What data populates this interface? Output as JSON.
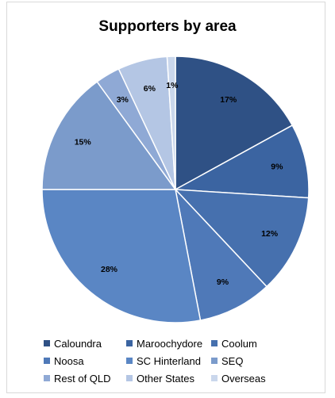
{
  "chart_data": {
    "type": "pie",
    "title": "Supporters by area",
    "legend_position": "bottom",
    "categories": [
      "Caloundra",
      "Maroochydore",
      "Coolum",
      "Noosa",
      "SC Hinterland",
      "SEQ",
      "Rest of QLD",
      "Other States",
      "Overseas"
    ],
    "values": [
      17,
      9,
      12,
      9,
      28,
      15,
      3,
      6,
      1
    ],
    "labels": [
      "17%",
      "9%",
      "12%",
      "9%",
      "28%",
      "15%",
      "3%",
      "6%",
      "1%"
    ],
    "colors": [
      "#2f5185",
      "#3b64a1",
      "#4670ae",
      "#4f79b8",
      "#5a86c4",
      "#7b9bcb",
      "#8fa9d5",
      "#b4c6e4",
      "#cad7ec"
    ]
  }
}
